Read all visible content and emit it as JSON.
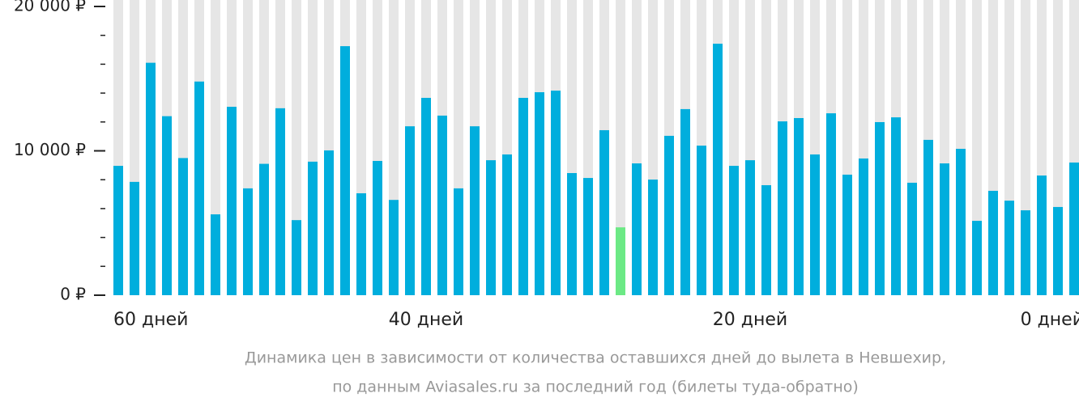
{
  "chart_data": {
    "type": "bar",
    "caption": [
      "Динамика цен в зависимости от количества оставшихся дней до вылета в Невшехир,",
      "по данным Aviasales.ru за последний год (билеты туда-обратно)"
    ],
    "categories": [
      "60 дней",
      null,
      null,
      null,
      null,
      null,
      null,
      null,
      null,
      null,
      null,
      null,
      null,
      null,
      null,
      null,
      null,
      null,
      null,
      "40 дней",
      null,
      null,
      null,
      null,
      null,
      null,
      null,
      null,
      null,
      null,
      null,
      null,
      null,
      null,
      null,
      null,
      null,
      null,
      null,
      "20 дней",
      null,
      null,
      null,
      null,
      null,
      null,
      null,
      null,
      null,
      null,
      null,
      null,
      null,
      null,
      null,
      null,
      null,
      null,
      null,
      "0 дней"
    ],
    "values": [
      8960,
      7850,
      16100,
      12400,
      9500,
      14800,
      5600,
      13050,
      7400,
      9100,
      12950,
      5200,
      9250,
      10030,
      17250,
      7060,
      9300,
      6600,
      11700,
      13670,
      12440,
      7400,
      11700,
      9350,
      9750,
      13670,
      14060,
      14170,
      8460,
      8120,
      11430,
      4700,
      9130,
      8010,
      11040,
      12890,
      10360,
      17420,
      8960,
      9350,
      7620,
      12040,
      12270,
      9750,
      12600,
      8350,
      9470,
      11990,
      12320,
      7790,
      10760,
      9130,
      10140,
      5150,
      7230,
      6550,
      5880,
      8290,
      6110,
      9190
    ],
    "color": "#00aedd",
    "highlight_index": 31,
    "highlight_color": "#6ce985",
    "ylim": [
      0,
      20000
    ],
    "yticks": [
      {
        "value": 0,
        "label": "0 ₽"
      },
      {
        "value": 10000,
        "label": "10 000 ₽"
      },
      {
        "value": 20000,
        "label": "20 000 ₽"
      }
    ],
    "yminorticks": [
      2000,
      4000,
      6000,
      8000,
      12000,
      14000,
      16000,
      18000
    ]
  }
}
